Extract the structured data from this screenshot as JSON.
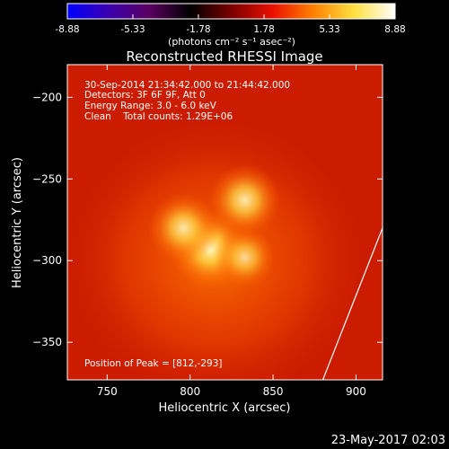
{
  "colorbar": {
    "ticks": [
      "-8.88",
      "-5.33",
      "-1.78",
      "1.78",
      "5.33",
      "8.88"
    ],
    "range": [
      -8.88,
      8.88
    ],
    "units_label": "(photons cm⁻² s⁻¹ asec⁻²)",
    "colors": [
      "#0000ff",
      "#3b00b0",
      "#5a0060",
      "#000000",
      "#7a0000",
      "#e81000",
      "#ff8000",
      "#ffe040",
      "#ffffff"
    ]
  },
  "title": "Reconstructed RHESSI Image",
  "annotations": {
    "time_range": "30-Sep-2014 21:34:42.000 to 21:44:42.000",
    "detectors": "Detectors: 3F 6F 9F, Att 0",
    "energy": "Energy Range: 3.0 - 6.0 keV",
    "clean": "Clean    Total counts: 1.29E+06",
    "peak": "Position of Peak = [812,-293]"
  },
  "footer_date": "23-May-2017 02:03",
  "chart_data": {
    "type": "heatmap",
    "title": "Reconstructed RHESSI Image",
    "xlabel": "Heliocentric X (arcsec)",
    "ylabel": "Heliocentric Y (arcsec)",
    "xlim": [
      726,
      916
    ],
    "ylim": [
      -373,
      -180
    ],
    "xticks": [
      750,
      800,
      850,
      900
    ],
    "yticks": [
      -200,
      -250,
      -300,
      -350
    ],
    "peak": [
      812,
      -293
    ],
    "sources": [
      {
        "x": 833,
        "y": -263,
        "intensity": 0.82
      },
      {
        "x": 812,
        "y": -293,
        "intensity": 1.0
      },
      {
        "x": 796,
        "y": -280,
        "intensity": 0.78
      },
      {
        "x": 833,
        "y": -298,
        "intensity": 0.55
      }
    ],
    "limb": [
      [
        916,
        -280
      ],
      [
        880,
        -373
      ]
    ],
    "colorbar_range": [
      -8.88,
      8.88
    ],
    "colors": {
      "background": "#c81800",
      "edge": "#d02010",
      "hot": "#fff4b0"
    }
  }
}
